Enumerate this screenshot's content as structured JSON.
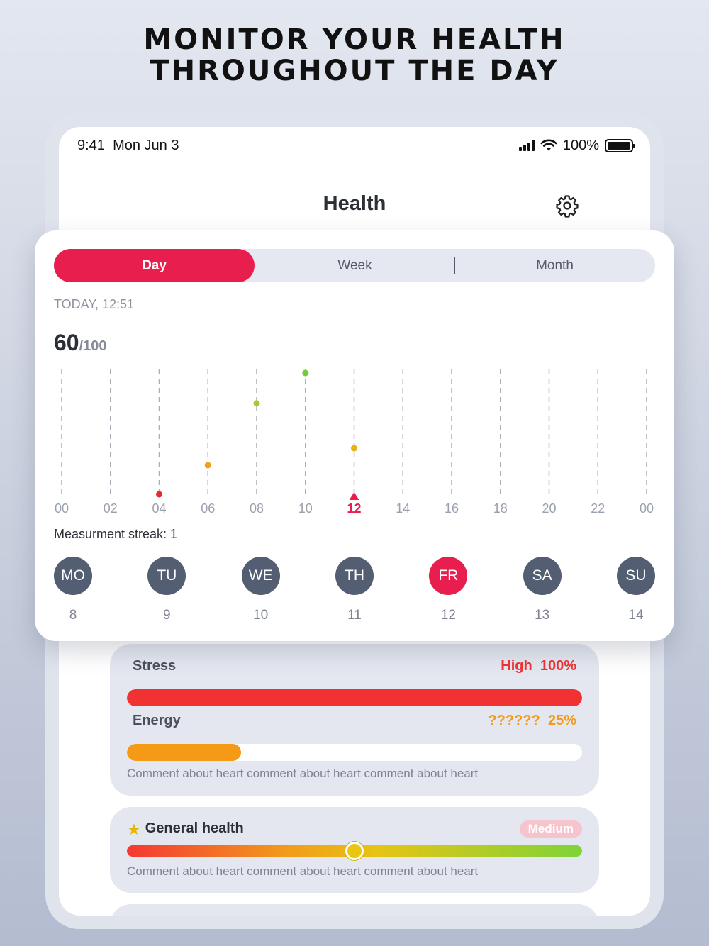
{
  "headline": [
    "MONITOR YOUR HEALTH",
    "THROUGHOUT THE DAY"
  ],
  "status": {
    "time": "9:41",
    "date": "Mon Jun 3",
    "battery": "100%"
  },
  "nav": {
    "title": "Health",
    "settings_icon": "gear-icon"
  },
  "tabs": [
    {
      "label": "Day",
      "active": true
    },
    {
      "label": "Week",
      "active": false
    },
    {
      "label": "Month",
      "active": false
    }
  ],
  "timestamp": "TODAY, 12:51",
  "score": {
    "value": "60",
    "max": "/100"
  },
  "chart_data": {
    "type": "scatter",
    "x_ticks": [
      "00",
      "02",
      "04",
      "06",
      "08",
      "10",
      "12",
      "14",
      "16",
      "18",
      "20",
      "22",
      "00"
    ],
    "selected_tick": "12",
    "ylim": [
      0,
      100
    ],
    "points": [
      {
        "x": "04",
        "y": 0,
        "color": "#e52b2b"
      },
      {
        "x": "06",
        "y": 24,
        "color": "#f2a01c"
      },
      {
        "x": "08",
        "y": 75,
        "color": "#a6c832"
      },
      {
        "x": "10",
        "y": 100,
        "color": "#6fcf3a"
      },
      {
        "x": "12",
        "y": 38,
        "color": "#e6b316"
      }
    ],
    "grid": true
  },
  "streak": "Measurment streak: 1",
  "week_days": [
    {
      "abbr": "MO",
      "num": "8",
      "active": false
    },
    {
      "abbr": "TU",
      "num": "9",
      "active": false
    },
    {
      "abbr": "WE",
      "num": "10",
      "active": false
    },
    {
      "abbr": "TH",
      "num": "11",
      "active": false
    },
    {
      "abbr": "FR",
      "num": "12",
      "active": true
    },
    {
      "abbr": "SA",
      "num": "13",
      "active": false
    },
    {
      "abbr": "SU",
      "num": "14",
      "active": false
    }
  ],
  "stress": {
    "name": "Stress",
    "level": "High",
    "percent": "100%",
    "value": 1.0,
    "color": "#f03232"
  },
  "energy": {
    "name": "Energy",
    "level": "??????",
    "percent": "25%",
    "value": 0.25,
    "color": "#f49a16"
  },
  "stress_comment": "Comment about heart comment about heart comment about heart",
  "general": {
    "name": "General health",
    "badge": "Medium",
    "value": 0.5,
    "comment": "Comment about heart comment about heart comment about heart"
  },
  "colors": {
    "accent": "#e81e4e",
    "day_circle": "#545e72"
  }
}
